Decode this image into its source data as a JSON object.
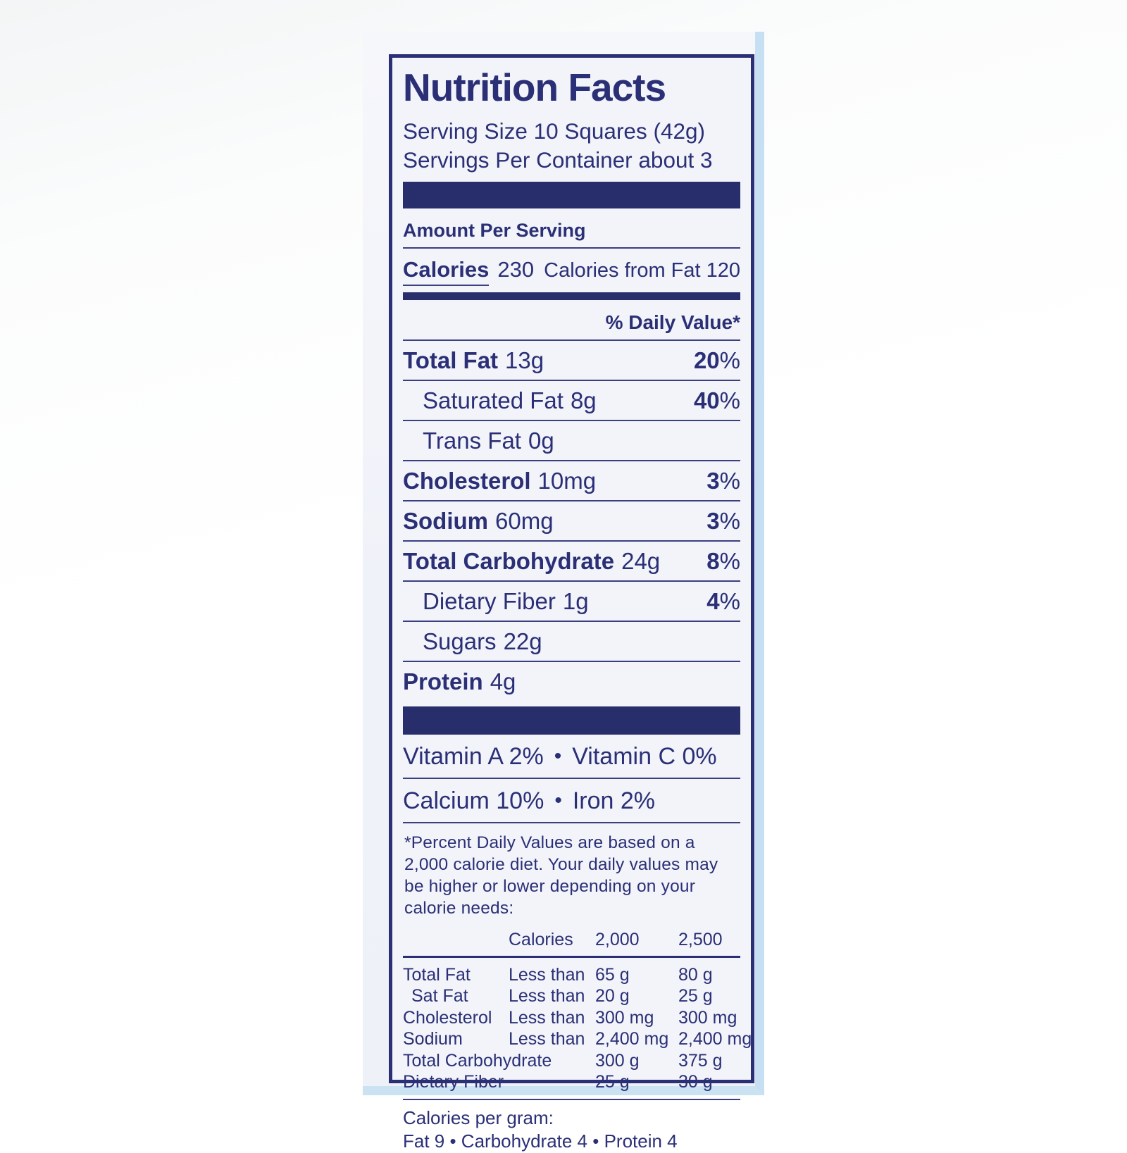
{
  "label": {
    "title": "Nutrition Facts",
    "serving_size": "Serving Size 10 Squares (42g)",
    "servings_per_container": "Servings Per Container about 3",
    "amount_per_serving": "Amount Per Serving",
    "calories_label": "Calories",
    "calories_value": "230",
    "calories_from_fat": "Calories from Fat 120",
    "daily_value_header": "% Daily Value*",
    "percent_sign": "%",
    "bullet": "•",
    "nutrients": [
      {
        "name": "Total Fat",
        "amount": "13g",
        "dv": "20"
      },
      {
        "name": "Saturated Fat",
        "amount": "8g",
        "dv": "40"
      },
      {
        "name": "Trans Fat",
        "amount": "0g",
        "dv": ""
      },
      {
        "name": "Cholesterol",
        "amount": "10mg",
        "dv": "3"
      },
      {
        "name": "Sodium",
        "amount": "60mg",
        "dv": "3"
      },
      {
        "name": "Total Carbohydrate",
        "amount": "24g",
        "dv": "8"
      },
      {
        "name": "Dietary Fiber",
        "amount": "1g",
        "dv": "4"
      },
      {
        "name": "Sugars",
        "amount": "22g",
        "dv": ""
      },
      {
        "name": "Protein",
        "amount": "4g",
        "dv": ""
      }
    ],
    "vitamins": [
      {
        "left": "Vitamin A 2%",
        "right": "Vitamin C 0%"
      },
      {
        "left": "Calcium 10%",
        "right": "Iron 2%"
      }
    ],
    "footnote": "*Percent Daily Values are based on a 2,000 calorie diet. Your daily values may be higher or lower depending on your calorie needs:",
    "dv_table": {
      "header": [
        "Calories",
        "2,000",
        "2,500"
      ],
      "rows": [
        [
          "Total Fat",
          "Less than",
          "65 g",
          "80 g"
        ],
        [
          "Sat Fat",
          "Less than",
          "20 g",
          "25 g"
        ],
        [
          "Cholesterol",
          "Less than",
          "300 mg",
          "300 mg"
        ],
        [
          "Sodium",
          "Less than",
          "2,400 mg",
          "2,400 mg"
        ],
        [
          "Total Carbohydrate",
          "",
          "300 g",
          "375 g"
        ],
        [
          "Dietary Fiber",
          "",
          "25 g",
          "30 g"
        ]
      ]
    },
    "calories_per_gram": {
      "title": "Calories per gram:",
      "values": "Fat 9 • Carbohydrate 4 • Protein 4"
    },
    "colors": {
      "navy": "#2b2f76",
      "paper": "#f2f4fa",
      "paper_edge": "#c7dff2",
      "background": "#fafbfc"
    }
  }
}
